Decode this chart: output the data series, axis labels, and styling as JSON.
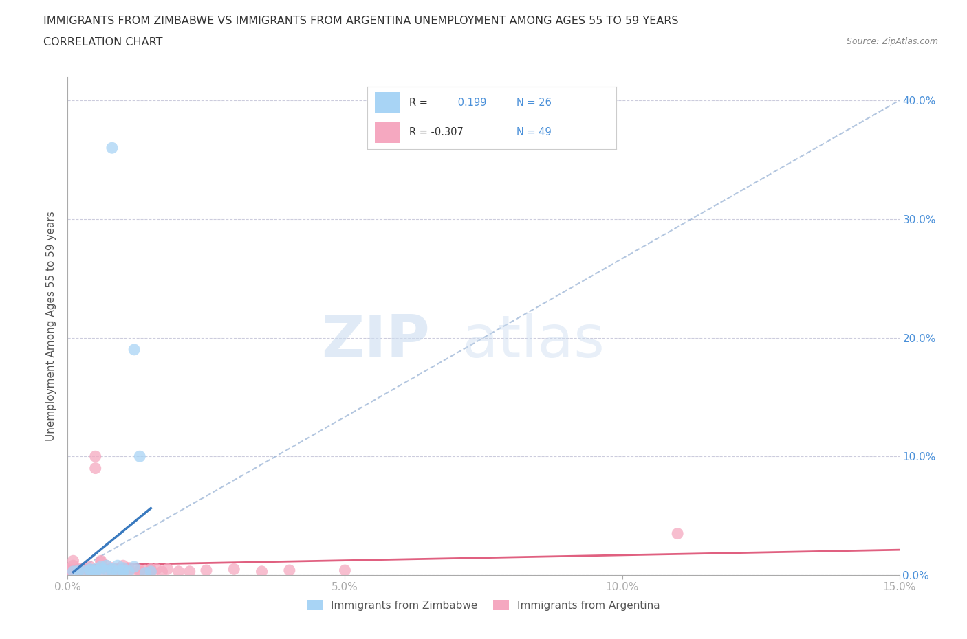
{
  "title_line1": "IMMIGRANTS FROM ZIMBABWE VS IMMIGRANTS FROM ARGENTINA UNEMPLOYMENT AMONG AGES 55 TO 59 YEARS",
  "title_line2": "CORRELATION CHART",
  "source": "Source: ZipAtlas.com",
  "ylabel": "Unemployment Among Ages 55 to 59 years",
  "xlim": [
    0.0,
    0.15
  ],
  "ylim": [
    0.0,
    0.42
  ],
  "xticks": [
    0.0,
    0.05,
    0.1,
    0.15
  ],
  "xtick_labels": [
    "0.0%",
    "5.0%",
    "10.0%",
    "15.0%"
  ],
  "yticks": [
    0.0,
    0.1,
    0.2,
    0.3,
    0.4
  ],
  "ytick_labels_right": [
    "0.0%",
    "10.0%",
    "20.0%",
    "30.0%",
    "40.0%"
  ],
  "r_zimbabwe": "0.199",
  "n_zimbabwe": "26",
  "r_argentina": "-0.307",
  "n_argentina": "49",
  "color_zimbabwe": "#a8d4f5",
  "color_argentina": "#f5a8c0",
  "color_zimbabwe_line": "#3a7abf",
  "color_argentina_line": "#e06080",
  "color_dashed": "#a0b8d8",
  "watermark_zip": "ZIP",
  "watermark_atlas": "atlas",
  "background_color": "#ffffff",
  "grid_color": "#ccccdd",
  "zimbabwe_points_x": [
    0.008,
    0.001,
    0.002,
    0.003,
    0.004,
    0.004,
    0.005,
    0.005,
    0.005,
    0.006,
    0.006,
    0.007,
    0.007,
    0.008,
    0.008,
    0.009,
    0.009,
    0.01,
    0.01,
    0.01,
    0.011,
    0.012,
    0.012,
    0.013,
    0.014,
    0.015
  ],
  "zimbabwe_points_y": [
    0.36,
    0.003,
    0.004,
    0.003,
    0.005,
    0.004,
    0.005,
    0.003,
    0.002,
    0.007,
    0.005,
    0.004,
    0.008,
    0.005,
    0.003,
    0.008,
    0.003,
    0.003,
    0.004,
    0.006,
    0.003,
    0.007,
    0.19,
    0.1,
    0.002,
    0.003
  ],
  "argentina_points_x": [
    0.0,
    0.0,
    0.0,
    0.0,
    0.0,
    0.001,
    0.001,
    0.002,
    0.002,
    0.003,
    0.003,
    0.004,
    0.004,
    0.005,
    0.005,
    0.005,
    0.006,
    0.006,
    0.006,
    0.007,
    0.007,
    0.008,
    0.008,
    0.009,
    0.009,
    0.01,
    0.01,
    0.011,
    0.011,
    0.012,
    0.013,
    0.013,
    0.014,
    0.015,
    0.015,
    0.015,
    0.016,
    0.017,
    0.018,
    0.02,
    0.022,
    0.025,
    0.03,
    0.035,
    0.04,
    0.05,
    0.11,
    0.0,
    0.0
  ],
  "argentina_points_y": [
    0.005,
    0.004,
    0.003,
    0.002,
    0.001,
    0.012,
    0.008,
    0.005,
    0.004,
    0.006,
    0.004,
    0.007,
    0.003,
    0.1,
    0.09,
    0.004,
    0.012,
    0.011,
    0.005,
    0.008,
    0.004,
    0.006,
    0.003,
    0.005,
    0.003,
    0.008,
    0.003,
    0.006,
    0.004,
    0.005,
    0.004,
    0.003,
    0.004,
    0.005,
    0.004,
    0.003,
    0.005,
    0.003,
    0.005,
    0.003,
    0.003,
    0.004,
    0.005,
    0.003,
    0.004,
    0.004,
    0.035,
    0.003,
    0.002
  ],
  "diagonal_line_x": [
    0.0,
    0.15
  ],
  "diagonal_line_y": [
    0.0,
    0.4
  ]
}
